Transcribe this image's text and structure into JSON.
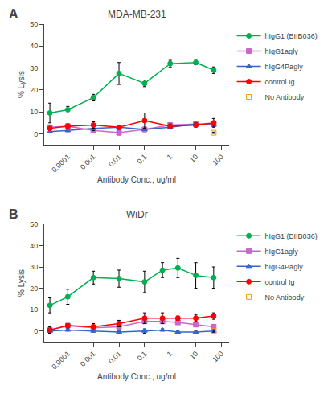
{
  "chart_data": [
    {
      "type": "line",
      "title": "MDA-MB-231",
      "annotations": [
        "A"
      ],
      "xlabel": "Antibody Conc., ug/ml",
      "ylabel": "% Lysis",
      "log": "x",
      "grid": false,
      "legend": "right",
      "xlim": [
        1.2e-05,
        200
      ],
      "xticks": [
        0.0001,
        0.001,
        0.01,
        0.1,
        1,
        10,
        100
      ],
      "ylim": [
        -5,
        50
      ],
      "yticks": [
        0,
        10,
        20,
        30,
        40,
        50
      ],
      "x": [
        2e-05,
        0.0001,
        0.001,
        0.01,
        0.1,
        1,
        10,
        50
      ],
      "series": [
        {
          "name": "hIgG1 (BIIB036)",
          "color": "#00b050",
          "marker": "circle",
          "values": [
            9.5,
            11.0,
            16.5,
            27.5,
            23.0,
            32.0,
            32.5,
            29.0
          ],
          "errors": [
            4.5,
            1.5,
            1.5,
            5.0,
            1.5,
            1.5,
            1.0,
            1.5
          ]
        },
        {
          "name": "hIgG1agly",
          "color": "#cc66cc",
          "marker": "square",
          "values": [
            3.0,
            3.5,
            1.5,
            0.5,
            2.0,
            4.0,
            4.5,
            4.5
          ],
          "errors": [
            0.5,
            0.5,
            1.0,
            1.0,
            1.0,
            0.5,
            0.5,
            0.5
          ]
        },
        {
          "name": "hIgG4Pagly",
          "color": "#3366cc",
          "marker": "triangle-up",
          "values": [
            1.0,
            1.5,
            2.5,
            3.0,
            2.0,
            3.0,
            4.5,
            4.0
          ],
          "errors": [
            0.5,
            0.5,
            1.0,
            1.0,
            0.5,
            0.5,
            0.5,
            0.5
          ]
        },
        {
          "name": "control Ig",
          "color": "#ff0000",
          "marker": "circle",
          "values": [
            2.5,
            3.5,
            4.0,
            3.0,
            6.0,
            3.5,
            4.0,
            5.0
          ],
          "errors": [
            0.5,
            1.0,
            1.5,
            0.5,
            3.5,
            1.0,
            1.0,
            2.0
          ]
        },
        {
          "name": "No Antibody",
          "color": "#ff9900",
          "marker": "square-open",
          "x": [
            50
          ],
          "values": [
            0.5
          ],
          "errors": [
            0.3
          ]
        }
      ]
    },
    {
      "type": "line",
      "title": "WiDr",
      "annotations": [
        "B"
      ],
      "xlabel": "Antibody Conc., ug/ml",
      "ylabel": "% Lysis",
      "log": "x",
      "grid": false,
      "legend": "right",
      "xlim": [
        1.2e-05,
        200
      ],
      "xticks": [
        0.0001,
        0.001,
        0.01,
        0.1,
        1,
        10,
        100
      ],
      "ylim": [
        -5,
        50
      ],
      "yticks": [
        0,
        10,
        20,
        30,
        40,
        50
      ],
      "x": [
        2e-05,
        0.0001,
        0.001,
        0.01,
        0.1,
        0.5,
        2,
        10,
        50
      ],
      "series": [
        {
          "name": "hIgG1 (BIIB036)",
          "color": "#00b050",
          "marker": "circle",
          "values": [
            12.0,
            16.0,
            25.0,
            24.5,
            23.0,
            28.5,
            29.5,
            26.0,
            25.0
          ],
          "errors": [
            3.5,
            3.5,
            3.0,
            4.0,
            5.0,
            3.5,
            4.5,
            6.0,
            5.0
          ]
        },
        {
          "name": "hIgG1agly",
          "color": "#cc66cc",
          "marker": "square",
          "values": [
            0.5,
            2.5,
            1.5,
            2.0,
            4.5,
            4.5,
            4.0,
            3.0,
            2.0
          ],
          "errors": [
            1.0,
            0.5,
            0.5,
            1.0,
            1.0,
            1.0,
            0.5,
            1.0,
            1.0
          ]
        },
        {
          "name": "hIgG4Pagly",
          "color": "#3366cc",
          "marker": "triangle-up",
          "values": [
            0.0,
            0.5,
            0.0,
            -0.5,
            0.0,
            0.5,
            -0.5,
            -0.5,
            0.0
          ],
          "errors": [
            1.0,
            0.5,
            0.5,
            0.5,
            1.0,
            0.5,
            0.5,
            0.5,
            0.5
          ]
        },
        {
          "name": "control Ig",
          "color": "#ff0000",
          "marker": "circle",
          "values": [
            0.5,
            2.5,
            2.0,
            3.5,
            6.0,
            6.0,
            6.0,
            6.0,
            7.0
          ],
          "errors": [
            1.5,
            1.0,
            1.5,
            1.5,
            2.5,
            2.5,
            1.0,
            1.5,
            1.5
          ]
        },
        {
          "name": "No Antibody",
          "color": "#ff9900",
          "marker": "square-open",
          "x": [
            50
          ],
          "values": [
            0.0
          ],
          "errors": [
            0.5
          ]
        }
      ]
    }
  ]
}
